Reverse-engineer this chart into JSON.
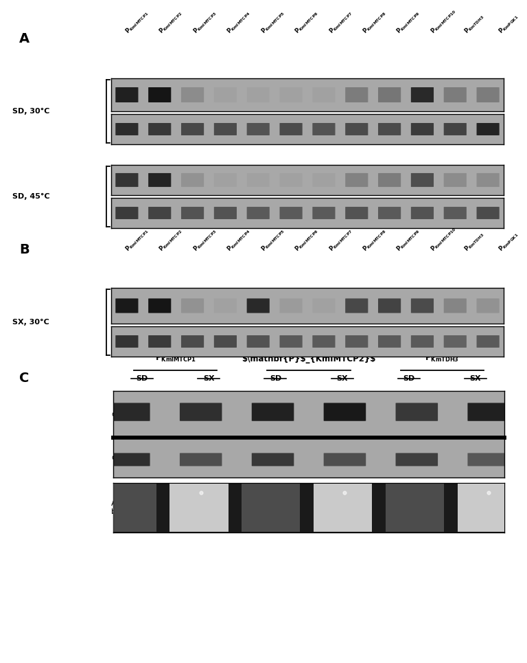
{
  "fig_width": 7.33,
  "fig_height": 9.13,
  "bg_color": "#ffffff",
  "panel_A": {
    "label": "A",
    "sub_label_subscript": [
      "KmIMTCP1",
      "KmIMTCP2",
      "KmIMTCP3",
      "KmIMTCP4",
      "KmIMTCP5",
      "KmIMTCP6",
      "KmIMTCP7",
      "KmIMTCP8",
      "KmIMTCP9",
      "KmIMTCP10",
      "KmTDH3",
      "KmPGK1"
    ],
    "condition1": "SD, 30°C",
    "condition2": "SD, 45°C",
    "SD30_GFP_bands": [
      0.88,
      0.95,
      0.18,
      0.04,
      0.04,
      0.04,
      0.04,
      0.28,
      0.32,
      0.82,
      0.28,
      0.28
    ],
    "SD30_Pgk1_bands": [
      0.8,
      0.72,
      0.62,
      0.6,
      0.55,
      0.6,
      0.55,
      0.6,
      0.6,
      0.7,
      0.65,
      0.85
    ],
    "SD45_GFP_bands": [
      0.75,
      0.85,
      0.14,
      0.04,
      0.04,
      0.04,
      0.04,
      0.24,
      0.28,
      0.58,
      0.18,
      0.18
    ],
    "SD45_Pgk1_bands": [
      0.7,
      0.65,
      0.55,
      0.55,
      0.5,
      0.5,
      0.5,
      0.55,
      0.5,
      0.55,
      0.5,
      0.6
    ]
  },
  "panel_B": {
    "label": "B",
    "condition": "SX, 30°C",
    "sub_label_subscript": [
      "KmIMTCP1",
      "KmIMTCP2",
      "KmIMTCP3",
      "KmIMTCP4",
      "KmIMTCP5",
      "KmIMTCP6",
      "KmIMTCP7",
      "KmIMTCP8",
      "KmIMTCP9",
      "KmIMTCP10",
      "KmTDH3",
      "KmPGK1"
    ],
    "SX30_GFP_bands": [
      0.92,
      0.95,
      0.14,
      0.04,
      0.82,
      0.08,
      0.04,
      0.62,
      0.65,
      0.6,
      0.22,
      0.14
    ],
    "SX30_Pgk1_bands": [
      0.75,
      0.7,
      0.6,
      0.6,
      0.55,
      0.5,
      0.5,
      0.5,
      0.5,
      0.5,
      0.45,
      0.5
    ]
  },
  "panel_C": {
    "label": "C",
    "group_labels_math": [
      "$P_{KmIMTCP1}$",
      "$P_{KmIMTCP2}$",
      "$P_{KmTDH3}$"
    ],
    "sub_labels": [
      "SD",
      "SX",
      "SD",
      "SX",
      "SD",
      "SX"
    ],
    "GFP_bands": [
      0.82,
      0.78,
      0.87,
      0.92,
      0.72,
      0.88
    ],
    "Pgk1_bands": [
      0.78,
      0.58,
      0.72,
      0.58,
      0.68,
      0.52
    ],
    "amido_vals": [
      0.25,
      0.88,
      0.25,
      0.88,
      0.25,
      0.88
    ]
  },
  "gel_bg": "#a8a8a8",
  "band_color": "#0d0d0d",
  "amido_bg": "#1a1a1a"
}
